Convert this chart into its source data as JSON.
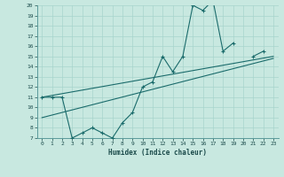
{
  "xlabel": "Humidex (Indice chaleur)",
  "bg_color": "#c8e8e0",
  "line_color": "#1a6b6b",
  "grid_color": "#a8d4cc",
  "xlim": [
    -0.5,
    23.5
  ],
  "ylim": [
    7,
    20
  ],
  "xticks": [
    0,
    1,
    2,
    3,
    4,
    5,
    6,
    7,
    8,
    9,
    10,
    11,
    12,
    13,
    14,
    15,
    16,
    17,
    18,
    19,
    20,
    21,
    22,
    23
  ],
  "yticks": [
    7,
    8,
    9,
    10,
    11,
    12,
    13,
    14,
    15,
    16,
    17,
    18,
    19,
    20
  ],
  "line1_x": [
    0,
    1,
    2,
    3,
    4,
    5,
    6,
    7,
    8,
    9,
    10,
    11,
    12,
    13,
    14,
    15,
    16,
    17,
    18,
    19,
    21,
    22
  ],
  "line1_y": [
    11,
    11,
    11,
    7,
    7.5,
    8,
    7.5,
    7,
    8.5,
    9.5,
    12,
    12.5,
    15,
    13.5,
    15,
    20,
    19.5,
    20.5,
    15.5,
    16.3,
    15,
    15.5
  ],
  "line1_breaks": [
    19,
    20
  ],
  "line2_x": [
    0,
    23
  ],
  "line2_y": [
    11,
    15.0
  ],
  "line3_x": [
    0,
    23
  ],
  "line3_y": [
    9.0,
    14.8
  ]
}
